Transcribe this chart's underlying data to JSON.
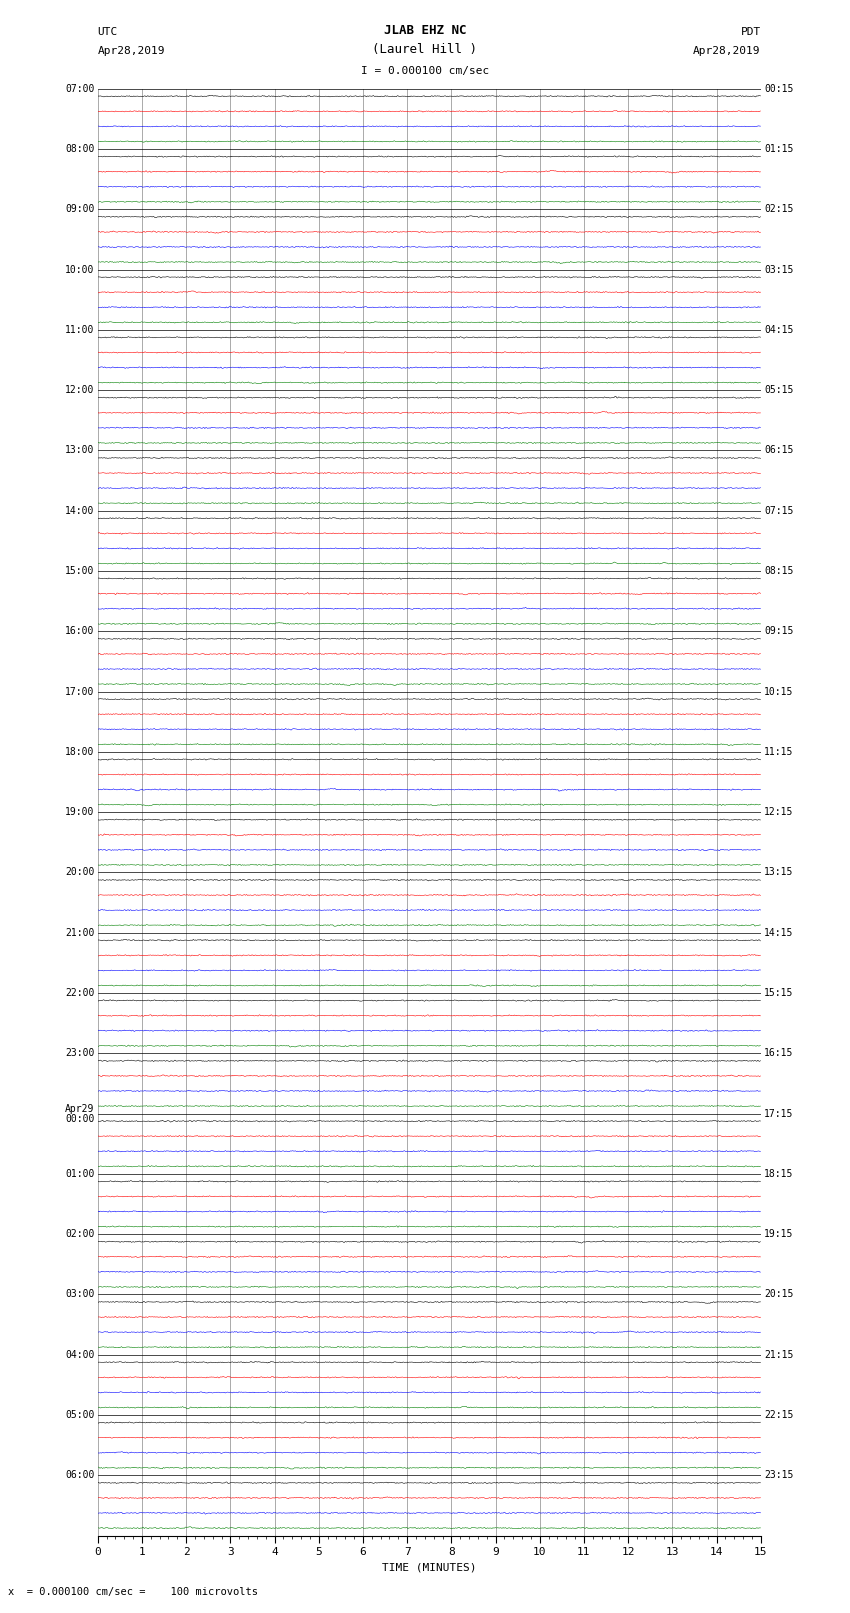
{
  "title_line1": "JLAB EHZ NC",
  "title_line2": "(Laurel Hill )",
  "scale_text": "I = 0.000100 cm/sec",
  "utc_label": "UTC",
  "utc_date": "Apr28,2019",
  "pdt_label": "PDT",
  "pdt_date": "Apr28,2019",
  "xlabel": "TIME (MINUTES)",
  "footer_text": "x  = 0.000100 cm/sec =    100 microvolts",
  "x_ticks": [
    0,
    1,
    2,
    3,
    4,
    5,
    6,
    7,
    8,
    9,
    10,
    11,
    12,
    13,
    14,
    15
  ],
  "minutes_per_row": 15,
  "total_rows": 24,
  "colors": [
    "black",
    "red",
    "blue",
    "green"
  ],
  "bg_color": "white",
  "noise_amplitude": 0.03,
  "grid_color": "#888888",
  "traces_per_row": 4,
  "fig_width": 8.5,
  "fig_height": 16.13,
  "dpi": 100,
  "left_label_utc_start_times": [
    "07:00",
    "08:00",
    "09:00",
    "10:00",
    "11:00",
    "12:00",
    "13:00",
    "14:00",
    "15:00",
    "16:00",
    "17:00",
    "18:00",
    "19:00",
    "20:00",
    "21:00",
    "22:00",
    "23:00",
    "Apr29\n00:00",
    "01:00",
    "02:00",
    "03:00",
    "04:00",
    "05:00",
    "06:00"
  ],
  "right_label_pdt_times": [
    "00:15",
    "01:15",
    "02:15",
    "03:15",
    "04:15",
    "05:15",
    "06:15",
    "07:15",
    "08:15",
    "09:15",
    "10:15",
    "11:15",
    "12:15",
    "13:15",
    "14:15",
    "15:15",
    "16:15",
    "17:15",
    "18:15",
    "19:15",
    "20:15",
    "21:15",
    "22:15",
    "23:15"
  ]
}
